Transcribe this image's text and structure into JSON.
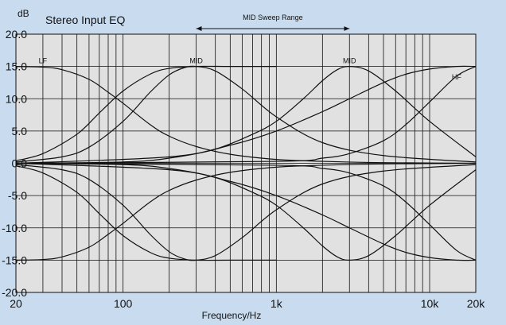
{
  "chart_data": {
    "type": "line",
    "title": "Stereo Input EQ",
    "xlabel": "Frequency/Hz",
    "ylabel": "dB",
    "x_scale": "log",
    "xlim": [
      20,
      20000
    ],
    "ylim": [
      -20,
      20
    ],
    "grid": true,
    "x_ticks": [
      {
        "value": 20,
        "label": "20"
      },
      {
        "value": 100,
        "label": "100"
      },
      {
        "value": 1000,
        "label": "1k"
      },
      {
        "value": 10000,
        "label": "10k"
      },
      {
        "value": 20000,
        "label": "20k"
      }
    ],
    "y_ticks": [
      {
        "value": 20,
        "label": "20.0"
      },
      {
        "value": 15,
        "label": "15.0"
      },
      {
        "value": 10,
        "label": "10.0"
      },
      {
        "value": 5,
        "label": "5.0"
      },
      {
        "value": 0,
        "label": "0.0"
      },
      {
        "value": -5,
        "label": "-5.0"
      },
      {
        "value": -10,
        "label": "-10.0"
      },
      {
        "value": -15,
        "label": "-15.0"
      },
      {
        "value": -20,
        "label": "-20.0"
      }
    ],
    "series": [
      {
        "band": "LF",
        "kind": "shelf",
        "x": [
          20,
          30,
          40,
          60,
          80,
          100,
          150,
          200,
          300,
          500,
          1000,
          2000,
          5000,
          20000
        ],
        "y": [
          15.0,
          14.9,
          14.5,
          13.0,
          11.0,
          9.3,
          6.0,
          4.2,
          2.6,
          1.4,
          0.6,
          0.3,
          0.1,
          0.0
        ]
      },
      {
        "band": "LF",
        "kind": "shelf",
        "x": [
          20,
          30,
          40,
          60,
          80,
          100,
          150,
          200,
          300,
          500,
          1000,
          2000,
          5000,
          20000
        ],
        "y": [
          -15.0,
          -14.9,
          -14.5,
          -13.0,
          -11.0,
          -9.3,
          -6.0,
          -4.2,
          -2.6,
          -1.4,
          -0.6,
          -0.3,
          -0.1,
          0.0
        ]
      },
      {
        "band": "LF",
        "kind": "shelf",
        "x": [
          20,
          30,
          50,
          70,
          100,
          150,
          200,
          300,
          500,
          1000
        ],
        "y": [
          0.4,
          1.5,
          4.5,
          7.8,
          11.2,
          13.8,
          14.7,
          15.0,
          15.0,
          15.0
        ]
      },
      {
        "band": "LF",
        "kind": "shelf",
        "x": [
          20,
          30,
          50,
          70,
          100,
          150,
          200,
          300,
          500,
          1000
        ],
        "y": [
          -0.4,
          -1.5,
          -4.5,
          -7.8,
          -11.2,
          -13.8,
          -14.7,
          -15.0,
          -15.0,
          -15.0
        ]
      },
      {
        "band": "MID",
        "kind": "peak",
        "x": [
          20,
          40,
          60,
          100,
          150,
          200,
          250,
          300,
          400,
          600,
          1000,
          2000,
          5000,
          20000
        ],
        "y": [
          0.2,
          1.0,
          2.5,
          6.5,
          11.0,
          13.7,
          14.8,
          15.0,
          14.3,
          11.5,
          7.2,
          3.2,
          1.2,
          0.2
        ]
      },
      {
        "band": "MID",
        "kind": "peak",
        "x": [
          20,
          40,
          60,
          100,
          150,
          200,
          250,
          300,
          400,
          600,
          1000,
          2000,
          5000,
          20000
        ],
        "y": [
          -0.2,
          -1.0,
          -2.5,
          -6.5,
          -11.0,
          -13.7,
          -14.8,
          -15.0,
          -14.3,
          -11.5,
          -7.2,
          -3.2,
          -1.2,
          -0.2
        ]
      },
      {
        "band": "MID",
        "kind": "peak",
        "x": [
          20,
          100,
          200,
          400,
          700,
          1000,
          1500,
          2000,
          2500,
          3000,
          4000,
          6000,
          10000,
          20000
        ],
        "y": [
          0.0,
          0.2,
          0.8,
          2.2,
          4.5,
          6.5,
          10.0,
          12.8,
          14.5,
          15.0,
          14.3,
          11.2,
          6.5,
          1.0
        ]
      },
      {
        "band": "MID",
        "kind": "peak",
        "x": [
          20,
          100,
          200,
          400,
          700,
          1000,
          1500,
          2000,
          2500,
          3000,
          4000,
          6000,
          10000,
          20000
        ],
        "y": [
          0.0,
          -0.2,
          -0.8,
          -2.2,
          -4.5,
          -6.5,
          -10.0,
          -12.8,
          -14.5,
          -15.0,
          -14.3,
          -11.2,
          -6.5,
          -1.0
        ]
      },
      {
        "band": "HF",
        "kind": "shelf",
        "x": [
          20,
          200,
          500,
          1000,
          2000,
          3000,
          5000,
          7000,
          10000,
          15000,
          20000
        ],
        "y": [
          0.0,
          1.0,
          2.8,
          5.0,
          8.0,
          10.0,
          12.5,
          13.8,
          14.6,
          15.0,
          15.0
        ]
      },
      {
        "band": "HF",
        "kind": "shelf",
        "x": [
          20,
          200,
          500,
          1000,
          2000,
          3000,
          5000,
          7000,
          10000,
          15000,
          20000
        ],
        "y": [
          0.0,
          -1.0,
          -2.8,
          -5.0,
          -8.0,
          -10.0,
          -12.5,
          -13.8,
          -14.6,
          -15.0,
          -15.0
        ]
      },
      {
        "band": "HF",
        "kind": "shelf",
        "x": [
          20,
          1000,
          2000,
          3000,
          5000,
          7000,
          10000,
          15000,
          20000
        ],
        "y": [
          0.0,
          0.3,
          0.8,
          1.5,
          3.5,
          6.0,
          9.5,
          13.5,
          15.0
        ]
      },
      {
        "band": "HF",
        "kind": "shelf",
        "x": [
          20,
          1000,
          2000,
          3000,
          5000,
          7000,
          10000,
          15000,
          20000
        ],
        "y": [
          0.0,
          -0.3,
          -0.8,
          -1.5,
          -3.5,
          -6.0,
          -9.5,
          -13.5,
          -15.0
        ]
      }
    ],
    "annotations": [
      {
        "text": "LF",
        "x": 30,
        "y": 15
      },
      {
        "text": "MID",
        "x": 300,
        "y": 15
      },
      {
        "text": "MID",
        "x": 3000,
        "y": 15
      },
      {
        "text": "HF",
        "x": 15000,
        "y": 12.5
      }
    ],
    "sweep_range": {
      "label": "MID Sweep Range",
      "from": 300,
      "to": 3000
    },
    "colors": {
      "page_background": "#c9dcef",
      "plot_background": "#e1e1e1",
      "grid": "#111111",
      "curve": "#111111"
    }
  }
}
